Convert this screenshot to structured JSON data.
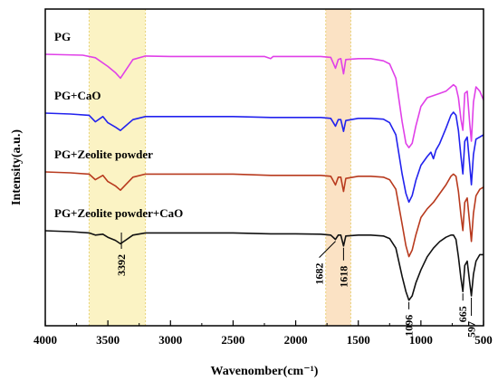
{
  "chart_data": {
    "type": "line",
    "title": "",
    "xlabel": "Wavenomber(cm⁻¹)",
    "ylabel": "Intensity(a.u.)",
    "xlim": [
      4000,
      500
    ],
    "x_reversed": true,
    "xticks": [
      "4000",
      "3500",
      "3000",
      "2500",
      "2000",
      "1500",
      "1000",
      "500"
    ],
    "yticks": false,
    "grid": false,
    "highlight_bands": [
      {
        "from": 3650,
        "to": 3200,
        "color": "#fbf3c4"
      },
      {
        "from": 1760,
        "to": 1560,
        "color": "#fbe2c4"
      }
    ],
    "series": [
      {
        "name": "PG",
        "color": "#e040e8",
        "offset": 3.0,
        "points": [
          [
            4000,
            0.0
          ],
          [
            3700,
            -0.02
          ],
          [
            3600,
            -0.08
          ],
          [
            3500,
            -0.28
          ],
          [
            3440,
            -0.42
          ],
          [
            3400,
            -0.55
          ],
          [
            3360,
            -0.38
          ],
          [
            3300,
            -0.12
          ],
          [
            3200,
            -0.04
          ],
          [
            3000,
            -0.05
          ],
          [
            2800,
            -0.05
          ],
          [
            2500,
            -0.05
          ],
          [
            2250,
            -0.05
          ],
          [
            2200,
            -0.1
          ],
          [
            2180,
            -0.05
          ],
          [
            2000,
            -0.05
          ],
          [
            1800,
            -0.05
          ],
          [
            1720,
            -0.07
          ],
          [
            1682,
            -0.32
          ],
          [
            1660,
            -0.12
          ],
          [
            1640,
            -0.1
          ],
          [
            1618,
            -0.45
          ],
          [
            1600,
            -0.12
          ],
          [
            1500,
            -0.1
          ],
          [
            1400,
            -0.1
          ],
          [
            1300,
            -0.15
          ],
          [
            1250,
            -0.22
          ],
          [
            1200,
            -0.55
          ],
          [
            1150,
            -1.55
          ],
          [
            1120,
            -2.05
          ],
          [
            1096,
            -2.15
          ],
          [
            1070,
            -2.05
          ],
          [
            1040,
            -1.65
          ],
          [
            1000,
            -1.2
          ],
          [
            950,
            -1.0
          ],
          [
            900,
            -0.95
          ],
          [
            850,
            -0.9
          ],
          [
            800,
            -0.85
          ],
          [
            740,
            -0.7
          ],
          [
            720,
            -0.75
          ],
          [
            700,
            -1.0
          ],
          [
            680,
            -1.5
          ],
          [
            665,
            -1.75
          ],
          [
            650,
            -0.9
          ],
          [
            630,
            -0.85
          ],
          [
            610,
            -1.6
          ],
          [
            597,
            -2.0
          ],
          [
            580,
            -1.1
          ],
          [
            560,
            -0.75
          ],
          [
            530,
            -0.85
          ],
          [
            500,
            -1.05
          ]
        ]
      },
      {
        "name": "PG+CaO",
        "color": "#2222ee",
        "offset": 2.0,
        "points": [
          [
            4000,
            0.0
          ],
          [
            3800,
            -0.02
          ],
          [
            3650,
            -0.05
          ],
          [
            3600,
            -0.2
          ],
          [
            3540,
            -0.08
          ],
          [
            3500,
            -0.22
          ],
          [
            3440,
            -0.32
          ],
          [
            3400,
            -0.4
          ],
          [
            3360,
            -0.3
          ],
          [
            3300,
            -0.15
          ],
          [
            3200,
            -0.08
          ],
          [
            3000,
            -0.08
          ],
          [
            2800,
            -0.08
          ],
          [
            2500,
            -0.08
          ],
          [
            2200,
            -0.1
          ],
          [
            2000,
            -0.1
          ],
          [
            1800,
            -0.1
          ],
          [
            1720,
            -0.12
          ],
          [
            1682,
            -0.3
          ],
          [
            1660,
            -0.15
          ],
          [
            1640,
            -0.15
          ],
          [
            1618,
            -0.42
          ],
          [
            1600,
            -0.17
          ],
          [
            1500,
            -0.12
          ],
          [
            1400,
            -0.12
          ],
          [
            1300,
            -0.14
          ],
          [
            1250,
            -0.22
          ],
          [
            1200,
            -0.5
          ],
          [
            1150,
            -1.4
          ],
          [
            1120,
            -1.85
          ],
          [
            1096,
            -2.05
          ],
          [
            1070,
            -1.9
          ],
          [
            1040,
            -1.55
          ],
          [
            1000,
            -1.2
          ],
          [
            950,
            -1.0
          ],
          [
            920,
            -0.9
          ],
          [
            900,
            -1.05
          ],
          [
            880,
            -0.85
          ],
          [
            850,
            -0.7
          ],
          [
            800,
            -0.35
          ],
          [
            760,
            -0.05
          ],
          [
            740,
            0.02
          ],
          [
            720,
            -0.05
          ],
          [
            700,
            -0.4
          ],
          [
            680,
            -1.0
          ],
          [
            665,
            -1.4
          ],
          [
            650,
            -0.65
          ],
          [
            630,
            -0.55
          ],
          [
            610,
            -1.2
          ],
          [
            597,
            -1.65
          ],
          [
            580,
            -0.95
          ],
          [
            560,
            -0.6
          ],
          [
            530,
            -0.55
          ],
          [
            500,
            -0.5
          ]
        ]
      },
      {
        "name": "PG+Zeolite powder",
        "color": "#b83a1e",
        "offset": 1.0,
        "points": [
          [
            4000,
            0.0
          ],
          [
            3800,
            -0.02
          ],
          [
            3650,
            -0.05
          ],
          [
            3600,
            -0.18
          ],
          [
            3540,
            -0.08
          ],
          [
            3500,
            -0.22
          ],
          [
            3440,
            -0.32
          ],
          [
            3400,
            -0.42
          ],
          [
            3360,
            -0.3
          ],
          [
            3300,
            -0.12
          ],
          [
            3200,
            -0.05
          ],
          [
            3000,
            -0.05
          ],
          [
            2800,
            -0.05
          ],
          [
            2500,
            -0.05
          ],
          [
            2200,
            -0.08
          ],
          [
            2000,
            -0.08
          ],
          [
            1800,
            -0.08
          ],
          [
            1720,
            -0.1
          ],
          [
            1682,
            -0.3
          ],
          [
            1660,
            -0.12
          ],
          [
            1640,
            -0.12
          ],
          [
            1618,
            -0.45
          ],
          [
            1600,
            -0.15
          ],
          [
            1500,
            -0.1
          ],
          [
            1400,
            -0.1
          ],
          [
            1300,
            -0.12
          ],
          [
            1250,
            -0.18
          ],
          [
            1200,
            -0.4
          ],
          [
            1150,
            -1.2
          ],
          [
            1120,
            -1.7
          ],
          [
            1096,
            -1.95
          ],
          [
            1070,
            -1.8
          ],
          [
            1040,
            -1.45
          ],
          [
            1000,
            -1.05
          ],
          [
            950,
            -0.85
          ],
          [
            900,
            -0.7
          ],
          [
            850,
            -0.5
          ],
          [
            800,
            -0.3
          ],
          [
            760,
            -0.1
          ],
          [
            740,
            -0.05
          ],
          [
            720,
            -0.1
          ],
          [
            700,
            -0.45
          ],
          [
            680,
            -1.0
          ],
          [
            665,
            -1.35
          ],
          [
            650,
            -0.7
          ],
          [
            630,
            -0.6
          ],
          [
            610,
            -1.2
          ],
          [
            597,
            -1.6
          ],
          [
            580,
            -0.95
          ],
          [
            560,
            -0.55
          ],
          [
            530,
            -0.4
          ],
          [
            500,
            -0.35
          ]
        ]
      },
      {
        "name": "PG+Zeolite powder+CaO",
        "color": "#111111",
        "offset": 0.0,
        "points": [
          [
            4000,
            0.0
          ],
          [
            3800,
            -0.02
          ],
          [
            3650,
            -0.05
          ],
          [
            3600,
            -0.1
          ],
          [
            3540,
            -0.08
          ],
          [
            3500,
            -0.15
          ],
          [
            3440,
            -0.22
          ],
          [
            3400,
            -0.3
          ],
          [
            3360,
            -0.22
          ],
          [
            3300,
            -0.1
          ],
          [
            3200,
            -0.05
          ],
          [
            3000,
            -0.05
          ],
          [
            2800,
            -0.05
          ],
          [
            2500,
            -0.05
          ],
          [
            2200,
            -0.07
          ],
          [
            2000,
            -0.07
          ],
          [
            1800,
            -0.08
          ],
          [
            1720,
            -0.1
          ],
          [
            1682,
            -0.2
          ],
          [
            1660,
            -0.1
          ],
          [
            1640,
            -0.1
          ],
          [
            1618,
            -0.35
          ],
          [
            1600,
            -0.12
          ],
          [
            1500,
            -0.1
          ],
          [
            1400,
            -0.1
          ],
          [
            1300,
            -0.12
          ],
          [
            1250,
            -0.18
          ],
          [
            1200,
            -0.4
          ],
          [
            1150,
            -1.05
          ],
          [
            1120,
            -1.4
          ],
          [
            1096,
            -1.6
          ],
          [
            1070,
            -1.5
          ],
          [
            1040,
            -1.2
          ],
          [
            1000,
            -0.9
          ],
          [
            950,
            -0.6
          ],
          [
            900,
            -0.4
          ],
          [
            850,
            -0.25
          ],
          [
            800,
            -0.15
          ],
          [
            760,
            -0.1
          ],
          [
            740,
            -0.1
          ],
          [
            720,
            -0.2
          ],
          [
            700,
            -0.6
          ],
          [
            680,
            -1.1
          ],
          [
            665,
            -1.4
          ],
          [
            650,
            -0.8
          ],
          [
            630,
            -0.7
          ],
          [
            610,
            -1.2
          ],
          [
            597,
            -1.5
          ],
          [
            580,
            -1.0
          ],
          [
            560,
            -0.7
          ],
          [
            530,
            -0.55
          ],
          [
            500,
            -0.55
          ]
        ]
      }
    ],
    "peak_labels": [
      {
        "text": "3392",
        "x": 3392,
        "series": 3
      },
      {
        "text": "1682",
        "x": 1682,
        "series": 3
      },
      {
        "text": "1618",
        "x": 1618,
        "series": 3
      },
      {
        "text": "1096",
        "x": 1096,
        "series": 3
      },
      {
        "text": "665",
        "x": 665,
        "series": 3
      },
      {
        "text": "597",
        "x": 597,
        "series": 3
      }
    ]
  }
}
